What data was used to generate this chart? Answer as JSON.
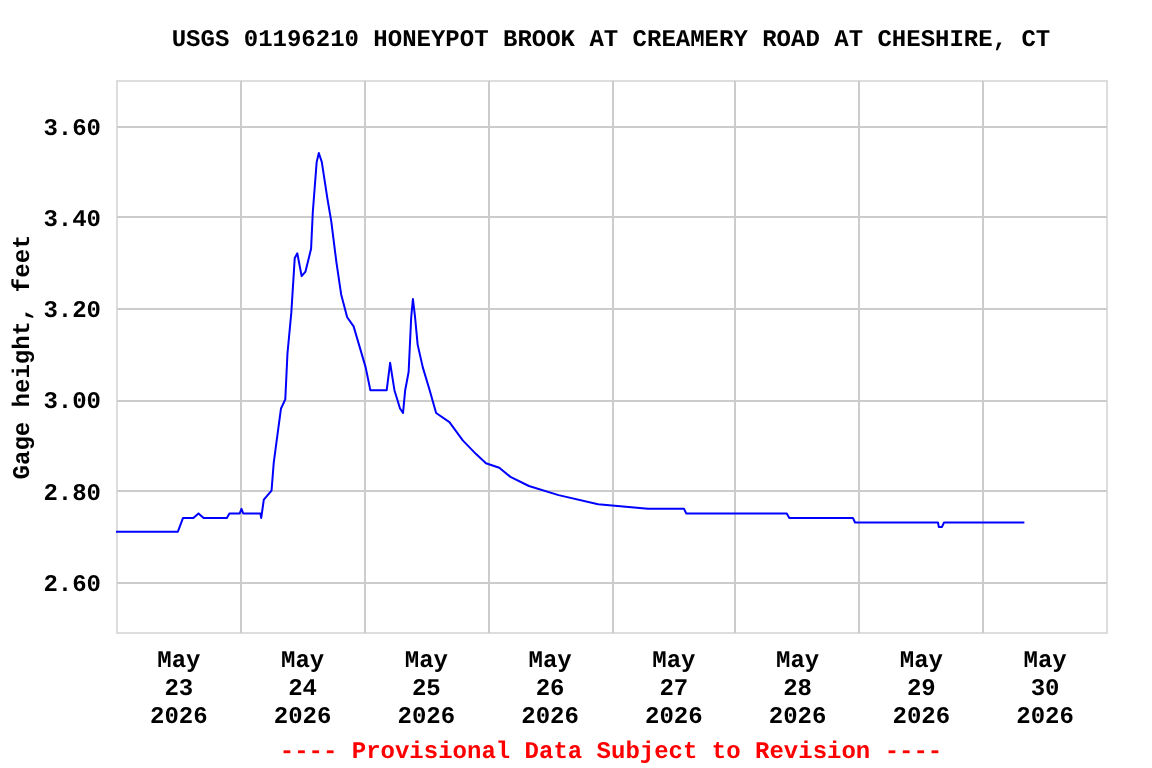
{
  "chart_data": {
    "type": "line",
    "title": "USGS 01196210 HONEYPOT BROOK AT CREAMERY ROAD AT CHESHIRE, CT",
    "ylabel": "Gage height, feet",
    "annotations": [
      "---- Provisional Data Subject to Revision ----"
    ],
    "x": [
      "2026-05-23T00:00",
      "2026-05-23T12:00",
      "2026-05-23T13:00",
      "2026-05-23T15:00",
      "2026-05-23T16:00",
      "2026-05-23T17:00",
      "2026-05-23T21:30",
      "2026-05-23T22:00",
      "2026-05-24T00:00",
      "2026-05-24T00:20",
      "2026-05-24T00:40",
      "2026-05-24T04:00",
      "2026-05-24T04:10",
      "2026-05-24T04:40",
      "2026-05-24T06:10",
      "2026-05-24T06:35",
      "2026-05-24T07:10",
      "2026-05-24T08:00",
      "2026-05-24T08:50",
      "2026-05-24T09:15",
      "2026-05-24T10:00",
      "2026-05-24T10:40",
      "2026-05-24T11:10",
      "2026-05-24T12:00",
      "2026-05-24T12:45",
      "2026-05-24T13:50",
      "2026-05-24T14:10",
      "2026-05-24T14:55",
      "2026-05-24T15:20",
      "2026-05-24T15:55",
      "2026-05-24T17:00",
      "2026-05-24T17:45",
      "2026-05-24T18:45",
      "2026-05-24T19:40",
      "2026-05-24T20:50",
      "2026-05-24T22:05",
      "2026-05-25T00:25",
      "2026-05-25T01:20",
      "2026-05-25T04:30",
      "2026-05-25T05:10",
      "2026-05-25T06:00",
      "2026-05-25T07:05",
      "2026-05-25T07:40",
      "2026-05-25T08:05",
      "2026-05-25T08:45",
      "2026-05-25T09:15",
      "2026-05-25T09:35",
      "2026-05-25T10:00",
      "2026-05-25T10:30",
      "2026-05-25T11:30",
      "2026-05-25T12:50",
      "2026-05-25T14:05",
      "2026-05-25T16:40",
      "2026-05-25T19:15",
      "2026-05-25T21:50",
      "2026-05-25T23:45",
      "2026-05-26T02:20",
      "2026-05-26T04:30",
      "2026-05-26T08:05",
      "2026-05-26T13:50",
      "2026-05-26T21:30",
      "2026-05-27T07:10",
      "2026-05-27T14:10",
      "2026-05-27T14:35",
      "2026-05-28T10:05",
      "2026-05-28T10:35",
      "2026-05-28T22:55",
      "2026-05-28T23:20",
      "2026-05-29T15:25",
      "2026-05-29T15:35",
      "2026-05-29T16:10",
      "2026-05-29T16:35",
      "2026-05-30T08:10"
    ],
    "series": [
      {
        "color": "#0000ff",
        "values": [
          2.71,
          2.71,
          2.74,
          2.74,
          2.75,
          2.74,
          2.74,
          2.75,
          2.75,
          2.76,
          2.75,
          2.75,
          2.74,
          2.78,
          2.8,
          2.86,
          2.91,
          2.98,
          3.0,
          3.1,
          3.19,
          3.31,
          3.32,
          3.27,
          3.28,
          3.33,
          3.41,
          3.52,
          3.54,
          3.52,
          3.44,
          3.39,
          3.3,
          3.23,
          3.18,
          3.16,
          3.07,
          3.02,
          3.02,
          3.08,
          3.02,
          2.98,
          2.97,
          3.02,
          3.06,
          3.18,
          3.22,
          3.18,
          3.12,
          3.07,
          3.02,
          2.97,
          2.95,
          2.91,
          2.88,
          2.86,
          2.85,
          2.83,
          2.81,
          2.79,
          2.77,
          2.76,
          2.76,
          2.75,
          2.75,
          2.74,
          2.74,
          2.73,
          2.73,
          2.72,
          2.72,
          2.73,
          2.73
        ]
      }
    ],
    "xlim": [
      "2026-05-23T00:00",
      "2026-05-31T00:00"
    ],
    "xticks": [
      {
        "value": "2026-05-23T12:00",
        "label": "May\n23\n2026"
      },
      {
        "value": "2026-05-24T12:00",
        "label": "May\n24\n2026"
      },
      {
        "value": "2026-05-25T12:00",
        "label": "May\n25\n2026"
      },
      {
        "value": "2026-05-26T12:00",
        "label": "May\n26\n2026"
      },
      {
        "value": "2026-05-27T12:00",
        "label": "May\n27\n2026"
      },
      {
        "value": "2026-05-28T12:00",
        "label": "May\n28\n2026"
      },
      {
        "value": "2026-05-29T12:00",
        "label": "May\n29\n2026"
      },
      {
        "value": "2026-05-30T12:00",
        "label": "May\n30\n2026"
      },
      {
        "value": "2026-05-24T00:00",
        "label": null
      },
      {
        "value": "2026-05-25T00:00",
        "label": null
      },
      {
        "value": "2026-05-26T00:00",
        "label": null
      },
      {
        "value": "2026-05-27T00:00",
        "label": null
      },
      {
        "value": "2026-05-28T00:00",
        "label": null
      },
      {
        "value": "2026-05-29T00:00",
        "label": null
      },
      {
        "value": "2026-05-30T00:00",
        "label": null
      }
    ],
    "ylim": [
      2.49,
      3.7
    ],
    "yticks": [
      {
        "value": 2.6,
        "label": "2.60"
      },
      {
        "value": 2.8,
        "label": "2.80"
      },
      {
        "value": 3.0,
        "label": "3.00"
      },
      {
        "value": 3.2,
        "label": "3.20"
      },
      {
        "value": 3.4,
        "label": "3.40"
      },
      {
        "value": 3.6,
        "label": "3.60"
      }
    ],
    "grid": true,
    "marker": "none",
    "line_style": "solid"
  }
}
